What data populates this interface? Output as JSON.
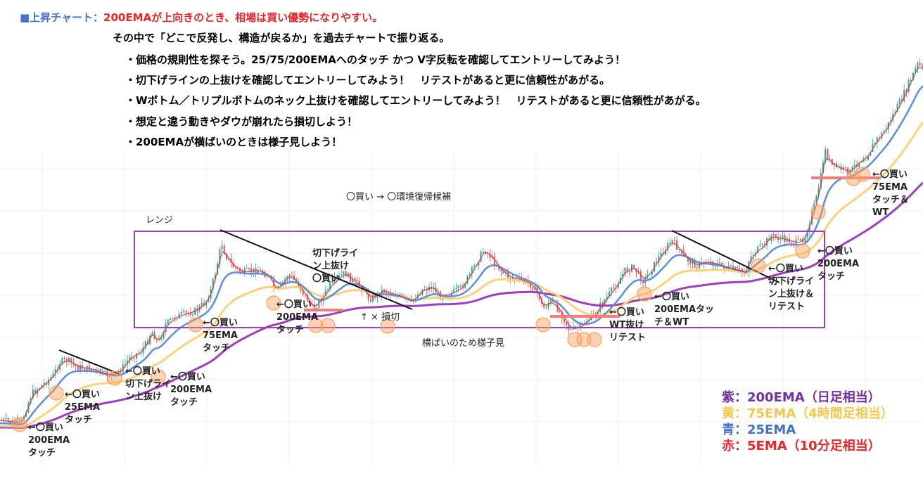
{
  "header": {
    "line1_prefix": "■上昇チャート：",
    "line1_text": "200EMAが上向きのとき、相場は買い優勢になりやすい。",
    "line2": "その中で「どこで反発し、構造が戻るか」を過去チャートで振り返る。",
    "bullets": [
      "・価格の規則性を探そう。25/75/200EMAへのタッチ かつ V字反転を確認してエントリーしてみよう！",
      "・切下げラインの上抜けを確認してエントリーしてみよう！　リテストがあると更に信頼性があがる。",
      "・Wボトム／トリプルボトムのネック上抜けを確認してエントリーしてみよう！　リテストがあると更に信頼性があがる。",
      "・想定と違う動きやダウが崩れたら損切しよう！",
      "・200EMAが横ばいのときは様子見しよう！"
    ]
  },
  "legend": [
    {
      "text": "紫：200EMA（日足相当）",
      "color": "#7030a0"
    },
    {
      "text": "黄：75EMA（4時間足相当）",
      "color": "#f2c94c"
    },
    {
      "text": "青：25EMA",
      "color": "#4472c4"
    },
    {
      "text": "赤：5EMA（10分足相当）",
      "color": "#e8262a"
    }
  ],
  "chart_data": {
    "type": "line",
    "series": [
      {
        "name": "200EMA",
        "color": "#9b3fbf"
      },
      {
        "name": "75EMA",
        "color": "#ffd27a"
      },
      {
        "name": "25EMA",
        "color": "#5b8fd9"
      },
      {
        "name": "5EMA",
        "color": "#e8262a"
      }
    ],
    "annotations": {
      "range_label": "レンジ",
      "range_note": "横ばいのため様子見",
      "buy_to_env": "〇買い → 〇環境復帰候補",
      "stop_loss": "↑ × 損切",
      "buys": [
        {
          "lines": [
            "←〇買い",
            "200EMA",
            "タッチ"
          ]
        },
        {
          "lines": [
            "←〇買い",
            "25EMA",
            "タッチ"
          ]
        },
        {
          "lines": [
            "←〇買い",
            "切下げライ",
            "ン上抜け"
          ]
        },
        {
          "lines": [
            "←〇買い",
            "200EMA",
            "タッチ"
          ]
        },
        {
          "lines": [
            "←〇買い",
            "75EMA",
            "タッチ"
          ]
        },
        {
          "lines": [
            "←〇買い",
            "200EMA",
            "タッチ"
          ]
        },
        {
          "lines": [
            "切下げライ",
            "ン上抜け",
            "〇買い"
          ]
        },
        {
          "lines": [
            "←〇買い",
            "WT抜け",
            "リテスト"
          ]
        },
        {
          "lines": [
            "←〇買い",
            "200EMAタッ",
            "チ＆WT"
          ]
        },
        {
          "lines": [
            "←〇買い",
            "切下げライ",
            "ン上抜け＆",
            "リテスト"
          ]
        },
        {
          "lines": [
            "←〇買い",
            "200EMA",
            "タッチ"
          ]
        },
        {
          "lines": [
            "←〇買い",
            "75EMA",
            "タッチ＆",
            "WT"
          ]
        }
      ]
    }
  }
}
